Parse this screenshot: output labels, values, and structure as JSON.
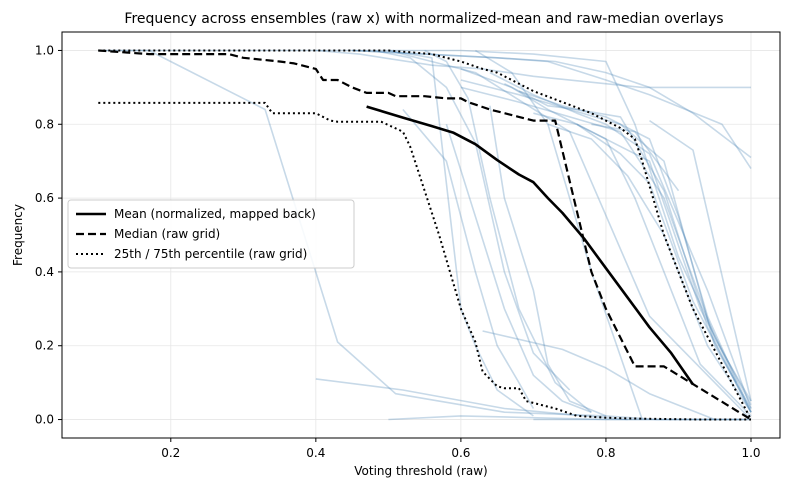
{
  "chart_data": {
    "type": "line",
    "title": "Frequency across ensembles (raw x) with normalized-mean and raw-median overlays",
    "xlabel": "Voting threshold (raw)",
    "ylabel": "Frequency",
    "xlim": [
      0.05,
      1.04
    ],
    "ylim": [
      -0.05,
      1.05
    ],
    "xticks": [
      0.2,
      0.4,
      0.6,
      0.8,
      1.0
    ],
    "xtick_labels": [
      "0.2",
      "0.4",
      "0.6",
      "0.8",
      "1.0"
    ],
    "yticks": [
      0.0,
      0.2,
      0.4,
      0.6,
      0.8,
      1.0
    ],
    "ytick_labels": [
      "0.0",
      "0.2",
      "0.4",
      "0.6",
      "0.8",
      "1.0"
    ],
    "grid": true,
    "legend_position": "center-left",
    "colors": {
      "ensemble": "#4682b4",
      "overlay": "#000000"
    },
    "ensembles": [
      {
        "x": [
          0.1,
          0.17,
          0.33,
          0.43,
          0.51,
          0.66,
          0.8,
          0.87,
          0.99
        ],
        "y": [
          1.0,
          1.0,
          0.84,
          0.21,
          0.07,
          0.02,
          0.01,
          0.0,
          0.0
        ]
      },
      {
        "x": [
          0.1,
          0.4,
          0.5,
          0.62,
          0.75,
          0.86,
          1.0
        ],
        "y": [
          1.0,
          1.0,
          1.0,
          0.94,
          0.78,
          0.28,
          0.0
        ]
      },
      {
        "x": [
          0.4,
          0.46,
          0.56,
          0.63,
          0.7,
          0.85,
          1.0
        ],
        "y": [
          1.0,
          0.99,
          0.96,
          0.95,
          0.93,
          0.9,
          0.9
        ]
      },
      {
        "x": [
          0.5,
          0.6,
          0.7,
          0.8,
          0.84,
          0.9,
          0.98
        ],
        "y": [
          1.0,
          1.0,
          0.99,
          0.97,
          0.8,
          0.44,
          0.1
        ]
      },
      {
        "x": [
          0.45,
          0.55,
          0.65,
          0.73,
          0.8,
          0.86,
          0.92,
          1.0
        ],
        "y": [
          1.0,
          0.99,
          0.98,
          0.97,
          0.94,
          0.9,
          0.83,
          0.71
        ]
      },
      {
        "x": [
          0.45,
          0.55,
          0.65,
          0.72,
          0.8,
          0.86,
          0.96,
          1.0
        ],
        "y": [
          1.0,
          0.99,
          0.98,
          0.97,
          0.92,
          0.88,
          0.8,
          0.68
        ]
      },
      {
        "x": [
          0.48,
          0.53,
          0.58,
          0.62,
          0.66,
          0.7,
          0.75
        ],
        "y": [
          1.0,
          0.98,
          0.9,
          0.75,
          0.4,
          0.18,
          0.08
        ]
      },
      {
        "x": [
          0.5,
          0.56,
          0.6,
          0.62,
          0.65,
          0.7
        ],
        "y": [
          1.0,
          0.98,
          0.3,
          0.2,
          0.08,
          0.01
        ]
      },
      {
        "x": [
          0.55,
          0.58,
          0.61,
          0.64,
          0.68,
          0.73,
          0.78
        ],
        "y": [
          1.0,
          0.97,
          0.87,
          0.6,
          0.3,
          0.1,
          0.02
        ]
      },
      {
        "x": [
          0.62,
          0.67,
          0.72,
          0.78,
          0.85
        ],
        "y": [
          1.0,
          0.94,
          0.8,
          0.4,
          0.0
        ]
      },
      {
        "x": [
          0.6,
          0.68,
          0.75,
          0.82,
          0.88,
          0.95,
          1.0
        ],
        "y": [
          0.92,
          0.88,
          0.84,
          0.8,
          0.7,
          0.2,
          0.03
        ]
      },
      {
        "x": [
          0.6,
          0.68,
          0.75,
          0.82,
          0.88,
          0.95,
          1.0
        ],
        "y": [
          0.9,
          0.86,
          0.82,
          0.78,
          0.6,
          0.22,
          0.05
        ]
      },
      {
        "x": [
          0.6,
          0.67,
          0.72,
          0.78,
          0.86,
          0.93,
          1.0
        ],
        "y": [
          0.95,
          0.9,
          0.84,
          0.78,
          0.7,
          0.3,
          0.04
        ]
      },
      {
        "x": [
          0.64,
          0.7,
          0.76,
          0.8,
          0.86,
          0.94,
          1.0
        ],
        "y": [
          0.94,
          0.88,
          0.83,
          0.8,
          0.72,
          0.35,
          0.03
        ]
      },
      {
        "x": [
          0.66,
          0.72,
          0.76,
          0.82,
          0.88,
          0.94,
          1.0
        ],
        "y": [
          0.91,
          0.85,
          0.84,
          0.82,
          0.62,
          0.25,
          0.02
        ]
      },
      {
        "x": [
          0.68,
          0.74,
          0.8,
          0.86,
          0.9,
          0.94,
          1.0
        ],
        "y": [
          0.89,
          0.85,
          0.82,
          0.76,
          0.55,
          0.28,
          0.02
        ]
      },
      {
        "x": [
          0.7,
          0.76,
          0.82,
          0.86,
          0.92,
          1.0
        ],
        "y": [
          0.83,
          0.8,
          0.72,
          0.64,
          0.32,
          0.02
        ]
      },
      {
        "x": [
          0.72,
          0.78,
          0.83,
          0.88,
          0.94,
          1.0
        ],
        "y": [
          0.8,
          0.76,
          0.66,
          0.5,
          0.2,
          0.02
        ]
      },
      {
        "x": [
          0.76,
          0.8,
          0.84,
          0.88,
          0.93,
          1.0
        ],
        "y": [
          0.8,
          0.76,
          0.6,
          0.4,
          0.15,
          0.01
        ]
      },
      {
        "x": [
          0.86,
          0.92,
          1.0
        ],
        "y": [
          0.81,
          0.73,
          0.05
        ]
      },
      {
        "x": [
          0.78,
          0.84,
          0.9
        ],
        "y": [
          0.8,
          0.78,
          0.62
        ]
      },
      {
        "x": [
          0.4,
          0.52,
          0.66,
          0.77,
          0.83
        ],
        "y": [
          0.11,
          0.08,
          0.03,
          0.01,
          0.0
        ]
      },
      {
        "x": [
          0.5,
          0.6,
          0.8,
          1.0
        ],
        "y": [
          0.0,
          0.01,
          0.0,
          0.0
        ]
      },
      {
        "x": [
          0.63,
          0.74,
          0.8,
          0.86,
          0.95
        ],
        "y": [
          0.24,
          0.19,
          0.14,
          0.07,
          0.0
        ]
      },
      {
        "x": [
          0.7,
          0.74,
          0.8,
          0.92,
          1.0
        ],
        "y": [
          0.0,
          0.0,
          0.0,
          0.0,
          0.0
        ]
      },
      {
        "x": [
          0.64,
          0.66,
          0.7,
          0.72,
          0.75,
          0.8
        ],
        "y": [
          0.85,
          0.6,
          0.35,
          0.15,
          0.05,
          0.01
        ]
      },
      {
        "x": [
          0.52,
          0.58,
          0.62,
          0.65,
          0.68,
          0.7
        ],
        "y": [
          0.84,
          0.7,
          0.4,
          0.2,
          0.1,
          0.03
        ]
      },
      {
        "x": [
          0.58,
          0.62,
          0.66,
          0.7,
          0.74,
          0.78
        ],
        "y": [
          0.8,
          0.55,
          0.3,
          0.12,
          0.05,
          0.02
        ]
      }
    ],
    "series": [
      {
        "name": "Mean (normalized, mapped back)",
        "style": "solid",
        "x": [
          0.47,
          0.52,
          0.56,
          0.59,
          0.62,
          0.65,
          0.68,
          0.7,
          0.72,
          0.74,
          0.77,
          0.8,
          0.83,
          0.86,
          0.89,
          0.92
        ],
        "y": [
          0.848,
          0.818,
          0.795,
          0.777,
          0.746,
          0.703,
          0.664,
          0.643,
          0.6,
          0.56,
          0.49,
          0.41,
          0.33,
          0.25,
          0.18,
          0.095
        ]
      },
      {
        "name": "Median (raw grid)",
        "style": "dashed",
        "x": [
          0.1,
          0.17,
          0.2,
          0.28,
          0.3,
          0.35,
          0.37,
          0.4,
          0.41,
          0.43,
          0.45,
          0.47,
          0.5,
          0.51,
          0.52,
          0.55,
          0.58,
          0.6,
          0.61,
          0.64,
          0.68,
          0.7,
          0.71,
          0.73,
          0.78,
          0.8,
          0.84,
          0.85,
          0.88,
          1.0
        ],
        "y": [
          1.0,
          0.99,
          0.99,
          0.99,
          0.98,
          0.97,
          0.965,
          0.95,
          0.92,
          0.92,
          0.9,
          0.885,
          0.885,
          0.876,
          0.876,
          0.876,
          0.87,
          0.87,
          0.86,
          0.84,
          0.82,
          0.81,
          0.81,
          0.81,
          0.4,
          0.3,
          0.144,
          0.144,
          0.144,
          0.0
        ]
      },
      {
        "name": "25th / 75th percentile (raw grid)",
        "style": "dotted",
        "x": [
          0.1,
          0.33,
          0.34,
          0.4,
          0.42,
          0.43,
          0.45,
          0.49,
          0.52,
          0.53,
          0.54,
          0.57,
          0.6,
          0.62,
          0.63,
          0.65,
          0.66,
          0.68,
          0.69,
          0.71,
          0.73,
          0.76,
          0.8,
          0.83,
          0.86,
          0.9,
          0.93,
          1.0
        ],
        "y": [
          0.858,
          0.858,
          0.83,
          0.83,
          0.81,
          0.807,
          0.807,
          0.807,
          0.78,
          0.74,
          0.68,
          0.5,
          0.3,
          0.21,
          0.13,
          0.09,
          0.085,
          0.085,
          0.05,
          0.04,
          0.03,
          0.01,
          0.005,
          0.003,
          0.002,
          0.001,
          0.0,
          0.0
        ]
      },
      {
        "name": "",
        "style": "dotted",
        "x": [
          0.1,
          0.2,
          0.3,
          0.4,
          0.44,
          0.5,
          0.56,
          0.6,
          0.63,
          0.65,
          0.67,
          0.69,
          0.7,
          0.74,
          0.78,
          0.8,
          0.82,
          0.84,
          0.85,
          0.88,
          0.92,
          1.0
        ],
        "y": [
          1.0,
          1.0,
          1.0,
          1.0,
          1.0,
          1.0,
          0.99,
          0.97,
          0.95,
          0.94,
          0.92,
          0.9,
          0.89,
          0.86,
          0.83,
          0.81,
          0.79,
          0.76,
          0.7,
          0.5,
          0.3,
          0.0
        ]
      }
    ]
  }
}
